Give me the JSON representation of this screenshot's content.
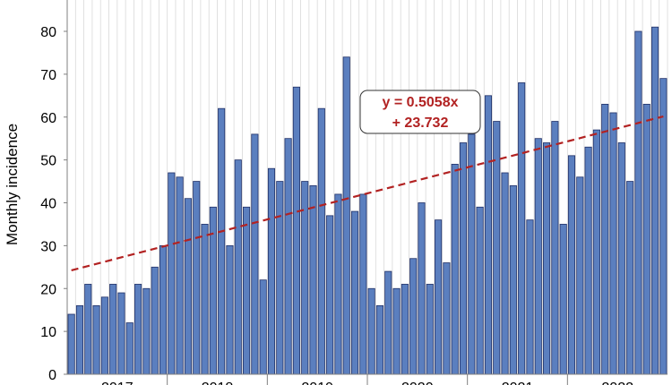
{
  "chart_data": {
    "type": "bar",
    "ylabel": "Monthly incidence",
    "xlabel": "",
    "title": "",
    "ylim": [
      0,
      86
    ],
    "yticks": [
      0,
      10,
      20,
      30,
      40,
      50,
      60,
      70,
      80
    ],
    "grid": "vertical",
    "years": [
      {
        "label": "2017",
        "months": 12
      },
      {
        "label": "2018",
        "months": 12
      },
      {
        "label": "2019",
        "months": 12
      },
      {
        "label": "2020",
        "months": 12
      },
      {
        "label": "2021",
        "months": 12
      },
      {
        "label": "2022",
        "months": 12
      }
    ],
    "values": [
      14,
      16,
      21,
      16,
      18,
      21,
      19,
      12,
      21,
      20,
      25,
      30,
      47,
      46,
      41,
      45,
      35,
      39,
      62,
      30,
      50,
      39,
      56,
      22,
      48,
      45,
      55,
      67,
      45,
      44,
      62,
      37,
      42,
      74,
      38,
      42,
      20,
      16,
      24,
      20,
      21,
      27,
      40,
      21,
      36,
      26,
      49,
      54,
      56,
      39,
      65,
      59,
      47,
      44,
      68,
      36,
      55,
      54,
      59,
      35,
      51,
      46,
      53,
      57,
      63,
      61,
      54,
      45,
      80,
      63,
      81,
      69
    ],
    "bar_color": "#5b7fbf",
    "bar_edge_color": "#1f2f66",
    "trendline": {
      "slope": 0.5058,
      "intercept": 23.732,
      "color": "#b22222",
      "style": "dashed",
      "label_line1": "y = 0.5058x",
      "label_line2": "+ 23.732"
    }
  }
}
